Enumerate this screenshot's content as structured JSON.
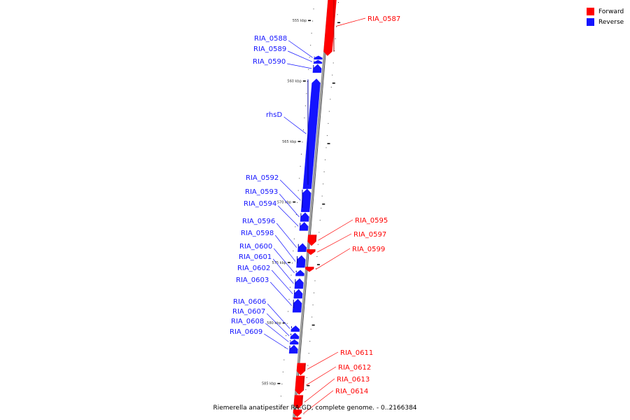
{
  "colors": {
    "forward": "#ff0000",
    "reverse": "#1414ff",
    "backbone": "#9a9a9a",
    "tick": "#000000"
  },
  "legend": [
    {
      "label": "Forward",
      "color": "#ff0000"
    },
    {
      "label": "Reverse",
      "color": "#1414ff"
    }
  ],
  "caption": "Riemerella anatipestifer RA-GD, complete genome. - 0..2166384",
  "scale": {
    "start_kbp": 553,
    "end_kbp": 588
  },
  "ticks": [
    {
      "kbp": 555,
      "label": "555 kbp"
    },
    {
      "kbp": 560,
      "label": "560 kbp"
    },
    {
      "kbp": 565,
      "label": "565 kbp"
    },
    {
      "kbp": 570,
      "label": "570 kbp"
    },
    {
      "kbp": 575,
      "label": "575 kbp"
    },
    {
      "kbp": 580,
      "label": "580 kbp"
    },
    {
      "kbp": 585,
      "label": "585 kbp"
    }
  ],
  "genes": [
    {
      "name": "RIA_0587",
      "strand": "forward",
      "start_kbp": 553.0,
      "end_kbp": 557.9
    },
    {
      "name": "RIA_0588",
      "strand": "reverse",
      "start_kbp": 557.9,
      "end_kbp": 558.2
    },
    {
      "name": "RIA_0589",
      "strand": "reverse",
      "start_kbp": 558.25,
      "end_kbp": 558.55
    },
    {
      "name": "RIA_0590",
      "strand": "reverse",
      "start_kbp": 558.6,
      "end_kbp": 559.3
    },
    {
      "name": "rhsD",
      "strand": "reverse",
      "start_kbp": 559.8,
      "end_kbp": 568.9
    },
    {
      "name": "RIA_0592",
      "strand": "reverse",
      "start_kbp": 568.9,
      "end_kbp": 570.8
    },
    {
      "name": "RIA_0593",
      "strand": "reverse",
      "start_kbp": 570.85,
      "end_kbp": 571.6
    },
    {
      "name": "RIA_0594",
      "strand": "reverse",
      "start_kbp": 571.65,
      "end_kbp": 572.35
    },
    {
      "name": "RIA_0595",
      "strand": "forward",
      "start_kbp": 572.7,
      "end_kbp": 573.6
    },
    {
      "name": "RIA_0596",
      "strand": "reverse",
      "start_kbp": 573.4,
      "end_kbp": 574.1
    },
    {
      "name": "RIA_0597",
      "strand": "forward",
      "start_kbp": 573.9,
      "end_kbp": 574.35
    },
    {
      "name": "RIA_0598",
      "strand": "reverse",
      "start_kbp": 574.4,
      "end_kbp": 575.4
    },
    {
      "name": "RIA_0599",
      "strand": "forward",
      "start_kbp": 575.35,
      "end_kbp": 575.75
    },
    {
      "name": "RIA_0600",
      "strand": "reverse",
      "start_kbp": 575.6,
      "end_kbp": 576.1
    },
    {
      "name": "RIA_0601",
      "strand": "reverse",
      "start_kbp": 576.3,
      "end_kbp": 577.15
    },
    {
      "name": "RIA_0602",
      "strand": "reverse",
      "start_kbp": 577.2,
      "end_kbp": 577.95
    },
    {
      "name": "RIA_0603",
      "strand": "reverse",
      "start_kbp": 578.0,
      "end_kbp": 579.1
    },
    {
      "name": "RIA_0606",
      "strand": "reverse",
      "start_kbp": 580.2,
      "end_kbp": 580.7
    },
    {
      "name": "RIA_0607",
      "strand": "reverse",
      "start_kbp": 580.8,
      "end_kbp": 581.3
    },
    {
      "name": "RIA_0608",
      "strand": "reverse",
      "start_kbp": 581.35,
      "end_kbp": 581.75
    },
    {
      "name": "RIA_0609",
      "strand": "reverse",
      "start_kbp": 581.8,
      "end_kbp": 582.5
    },
    {
      "name": "RIA_0611",
      "strand": "forward",
      "start_kbp": 583.3,
      "end_kbp": 584.3
    },
    {
      "name": "RIA_0612",
      "strand": "forward",
      "start_kbp": 584.35,
      "end_kbp": 585.9
    },
    {
      "name": "RIA_0613",
      "strand": "forward",
      "start_kbp": 585.95,
      "end_kbp": 587.1
    },
    {
      "name": "RIA_0614",
      "strand": "forward",
      "start_kbp": 587.15,
      "end_kbp": 587.75
    },
    {
      "name": "",
      "strand": "forward",
      "start_kbp": 587.8,
      "end_kbp": 588.0
    }
  ]
}
